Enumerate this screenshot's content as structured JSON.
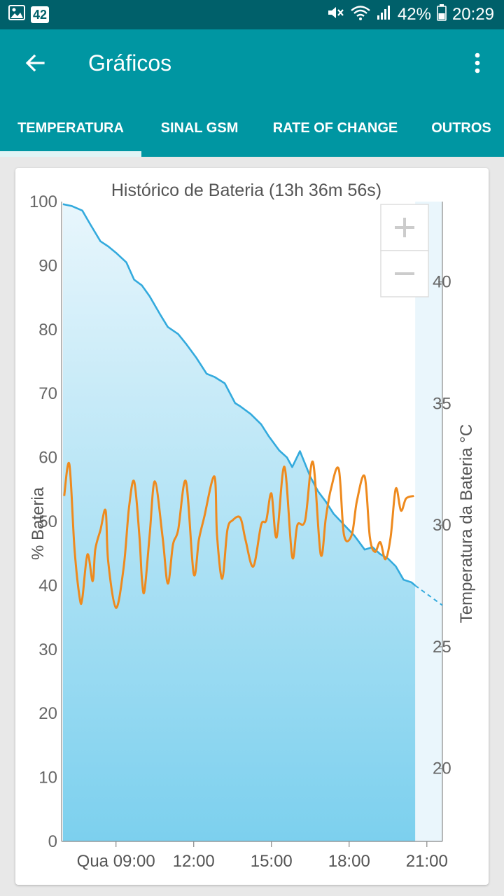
{
  "status_bar": {
    "notification_count": "42",
    "battery": "42%",
    "time": "20:29",
    "icons": [
      "image-icon",
      "mute-icon",
      "wifi-icon",
      "signal-icon",
      "battery-icon"
    ]
  },
  "app_bar": {
    "title": "Gráficos",
    "back_icon": "arrow-back-icon",
    "more_icon": "more-vert-icon"
  },
  "tabs": [
    {
      "label": "TEMPERATURA",
      "selected": true
    },
    {
      "label": "SINAL GSM",
      "selected": false
    },
    {
      "label": "RATE OF CHANGE",
      "selected": false
    },
    {
      "label": "OUTROS",
      "selected": false
    }
  ],
  "zoom": {
    "in_icon": "plus-icon",
    "out_icon": "minus-icon"
  },
  "colors": {
    "status_bar": "#00606a",
    "app_bar": "#0096a2",
    "battery_line": "#33aadd",
    "temperature_line": "#ee8a1e"
  },
  "chart_data": {
    "type": "line",
    "title": "Histórico de Bateria (13h 36m 56s)",
    "ylabel_left": "% Bateria",
    "ylabel_right": "Temperatura da Bateria °C",
    "x_ticks": [
      "Qua 09:00",
      "12:00",
      "15:00",
      "18:00",
      "21:00"
    ],
    "x_tick_hours": [
      9,
      12,
      15,
      18,
      21
    ],
    "xlim_hours": [
      6.9,
      21.6
    ],
    "y_left_ticks": [
      "0",
      "10",
      "20",
      "30",
      "40",
      "50",
      "60",
      "70",
      "80",
      "90",
      "100"
    ],
    "ylim_left": [
      0,
      100
    ],
    "y_right_ticks": [
      "20",
      "25",
      "30",
      "35",
      "40"
    ],
    "ylim_right": [
      17.0,
      43.3
    ],
    "series": [
      {
        "name": "battery",
        "axis": "left",
        "filled": true,
        "x_hours": [
          6.95,
          7.3,
          7.7,
          8.0,
          8.4,
          8.7,
          9.0,
          9.4,
          9.7,
          10.0,
          10.3,
          10.7,
          11.0,
          11.4,
          11.7,
          12.1,
          12.5,
          12.8,
          13.2,
          13.6,
          13.8,
          14.2,
          14.6,
          14.9,
          15.3,
          15.6,
          15.8,
          16.1,
          16.5,
          16.8,
          17.1,
          17.4,
          17.8,
          18.2,
          18.6,
          18.9,
          19.2,
          19.5,
          19.8,
          20.1,
          20.4,
          20.55
        ],
        "values": [
          99.6,
          99.3,
          98.6,
          96.5,
          93.8,
          93.0,
          92.0,
          90.5,
          87.8,
          86.9,
          85.2,
          82.4,
          80.4,
          79.3,
          77.8,
          75.6,
          73.1,
          72.6,
          71.6,
          68.5,
          68.0,
          66.8,
          65.2,
          63.3,
          61.1,
          60.0,
          58.5,
          61.0,
          57.0,
          54.7,
          53.1,
          51.2,
          49.5,
          47.8,
          45.6,
          46.0,
          44.9,
          44.2,
          43.0,
          40.9,
          40.5,
          40.0
        ]
      },
      {
        "name": "battery-projection",
        "axis": "left",
        "dashed": true,
        "x_hours": [
          20.55,
          21.6
        ],
        "values": [
          40.0,
          36.9
        ]
      },
      {
        "name": "temperature",
        "axis": "right",
        "x_hours": [
          7.0,
          7.2,
          7.4,
          7.6,
          7.7,
          7.9,
          8.1,
          8.2,
          8.4,
          8.6,
          8.7,
          9.0,
          9.3,
          9.5,
          9.7,
          9.9,
          10.0,
          10.1,
          10.3,
          10.5,
          10.8,
          11.0,
          11.2,
          11.4,
          11.7,
          12.0,
          12.2,
          12.4,
          12.8,
          12.9,
          13.1,
          13.3,
          13.5,
          13.8,
          14.0,
          14.3,
          14.6,
          14.8,
          15.0,
          15.2,
          15.5,
          15.8,
          16.0,
          16.3,
          16.6,
          16.9,
          17.1,
          17.3,
          17.6,
          17.8,
          18.1,
          18.3,
          18.6,
          18.8,
          19.0,
          19.2,
          19.4,
          19.6,
          19.8,
          20.0,
          20.2,
          20.5
        ],
        "values": [
          31.2,
          32.5,
          29.0,
          27.0,
          27.0,
          28.8,
          27.7,
          29.0,
          29.8,
          30.6,
          28.5,
          26.6,
          28.3,
          30.7,
          31.8,
          29.6,
          27.8,
          27.3,
          29.6,
          31.8,
          29.5,
          27.6,
          29.2,
          29.8,
          31.8,
          28.0,
          29.4,
          30.3,
          32.0,
          29.6,
          27.8,
          29.8,
          30.2,
          30.3,
          29.4,
          28.3,
          30.0,
          30.2,
          31.3,
          29.5,
          32.4,
          28.7,
          30.0,
          30.2,
          32.6,
          28.8,
          30.3,
          31.5,
          32.3,
          29.6,
          29.6,
          31.0,
          32.0,
          29.5,
          28.9,
          29.3,
          28.6,
          29.5,
          31.5,
          30.6,
          31.1,
          31.2
        ]
      }
    ],
    "grid": false,
    "legend": "none"
  }
}
